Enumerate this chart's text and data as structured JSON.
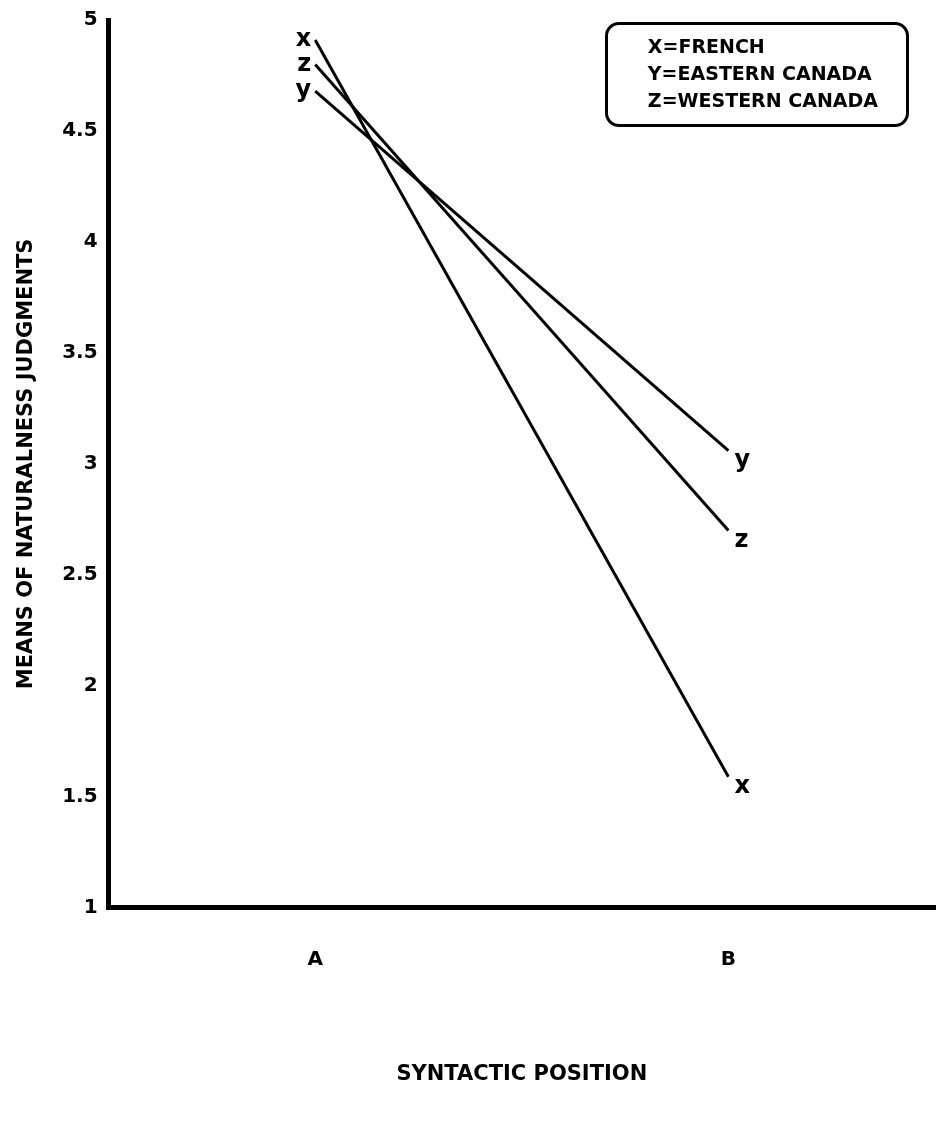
{
  "chart_data": {
    "type": "line",
    "xlabel": "SYNTACTIC POSITION",
    "ylabel": "MEANS OF NATURALNESS JUDGMENTS",
    "categories": [
      "A",
      "B"
    ],
    "series": [
      {
        "color": "#000000",
        "values": [
          4.91,
          1.59
        ]
      },
      {
        "color": "#000000",
        "values": [
          4.68,
          3.06
        ]
      },
      {
        "color": "#000000",
        "values": [
          4.8,
          2.7
        ]
      }
    ],
    "annotations": [
      "X=FRENCH",
      "Y=EASTERN CANADA",
      "Z=WESTERN CANADA",
      {
        "text": "x",
        "x": "A",
        "y": 4.91
      },
      {
        "text": "z",
        "x": "A",
        "y": 4.8
      },
      {
        "text": "y",
        "x": "A",
        "y": 4.68
      },
      {
        "text": "y",
        "x": "B",
        "y": 3.06
      },
      {
        "text": "z",
        "x": "B",
        "y": 2.7
      },
      {
        "text": "x",
        "x": "B",
        "y": 1.59
      }
    ],
    "ylim": [
      1,
      5
    ],
    "yticks": [
      1,
      1.5,
      2,
      2.5,
      3,
      3.5,
      4,
      4.5,
      5
    ],
    "grid": false,
    "marker": "none",
    "line_style": "solid"
  }
}
